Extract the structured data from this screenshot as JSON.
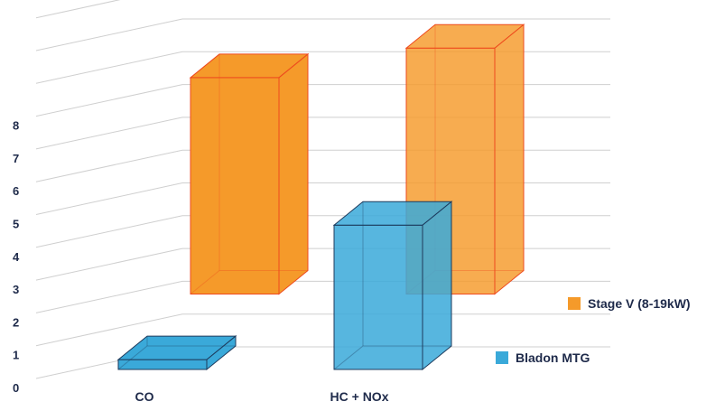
{
  "chart_data": {
    "type": "bar",
    "categories": [
      "CO",
      "HC + NOx"
    ],
    "series": [
      {
        "name": "Bladon MTG",
        "color": "#3aa9d9",
        "stroke": "#1d3a5c",
        "values": [
          0.3,
          4.4
        ]
      },
      {
        "name": "Stage V (8-19kW)",
        "color": "#f59a2a",
        "stroke": "#ee4a1e",
        "values": [
          6.6,
          7.5
        ]
      }
    ],
    "yticks": [
      "0",
      "1",
      "2",
      "3",
      "4",
      "5",
      "6",
      "7",
      "8"
    ],
    "ylim": [
      0,
      11
    ],
    "grid": true,
    "legend_position": "right",
    "title": "",
    "xlabel": "",
    "ylabel": ""
  }
}
